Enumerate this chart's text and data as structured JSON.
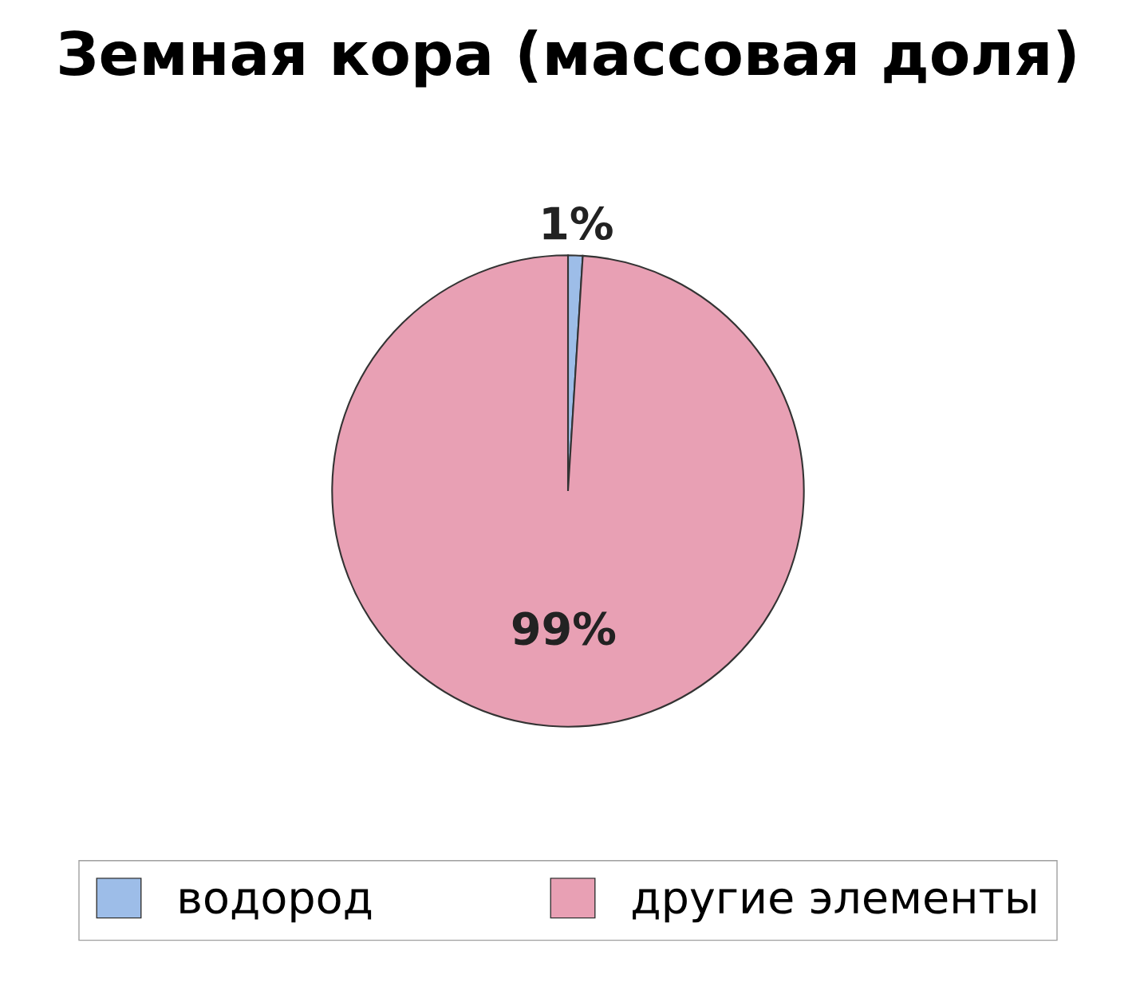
{
  "chart_data": {
    "type": "pie",
    "title": "Земная кора (массовая доля)",
    "categories": [
      "водород",
      "другие элементы"
    ],
    "values": [
      1,
      99
    ],
    "colors": [
      "#9dbde8",
      "#e8a0b4"
    ],
    "value_labels": [
      "1%",
      "99%"
    ],
    "legend": "bottom"
  }
}
